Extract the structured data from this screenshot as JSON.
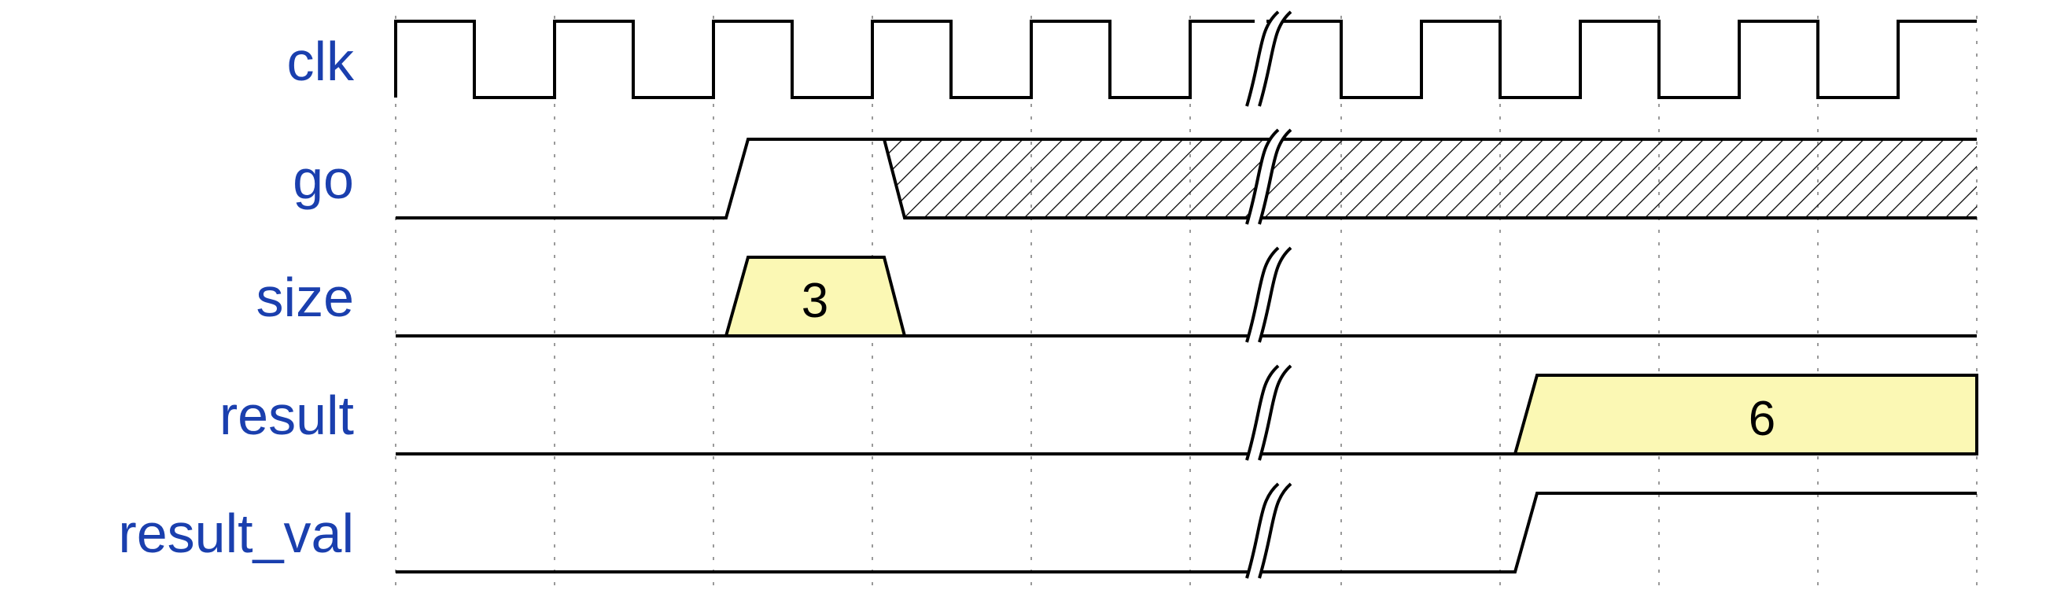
{
  "diagram": {
    "signals": [
      {
        "id": "clk",
        "label": "clk"
      },
      {
        "id": "go",
        "label": "go"
      },
      {
        "id": "size",
        "label": "size"
      },
      {
        "id": "result",
        "label": "result"
      },
      {
        "id": "result_val",
        "label": "result_val"
      }
    ],
    "bus_values": {
      "size": "3",
      "result": "6"
    },
    "colors": {
      "label": "#1a3fae",
      "line": "#000000",
      "bus_fill": "#fbf8b4",
      "grid": "#9a9a9a"
    }
  }
}
